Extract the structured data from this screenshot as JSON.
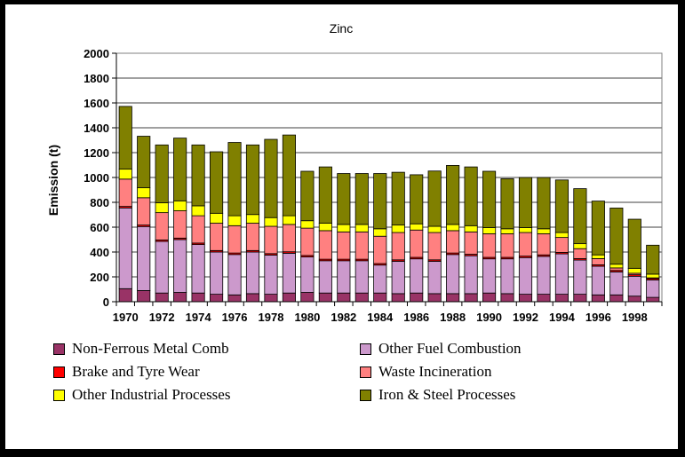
{
  "chart_data": {
    "type": "bar",
    "stacked": true,
    "title": "Zinc",
    "ylabel": "Emission (t)",
    "xlabel": "",
    "ylim": [
      0,
      2000
    ],
    "yticks": [
      0,
      200,
      400,
      600,
      800,
      1000,
      1200,
      1400,
      1600,
      1800,
      2000
    ],
    "grid": true,
    "legend_position": "bottom",
    "categories": [
      "1970",
      "1971",
      "1972",
      "1973",
      "1974",
      "1975",
      "1976",
      "1977",
      "1978",
      "1979",
      "1980",
      "1981",
      "1982",
      "1983",
      "1984",
      "1985",
      "1986",
      "1987",
      "1988",
      "1989",
      "1990",
      "1991",
      "1992",
      "1993",
      "1994",
      "1995",
      "1996",
      "1997",
      "1998",
      "1999"
    ],
    "x_tick_labels": [
      "1970",
      "1972",
      "1974",
      "1976",
      "1978",
      "1980",
      "1982",
      "1984",
      "1986",
      "1988",
      "1990",
      "1992",
      "1994",
      "1996",
      "1998"
    ],
    "series": [
      {
        "name": "Non-Ferrous Metal Comb",
        "color": "#993366",
        "values": [
          105,
          90,
          70,
          75,
          70,
          60,
          55,
          65,
          60,
          70,
          75,
          70,
          70,
          70,
          70,
          65,
          70,
          65,
          65,
          65,
          70,
          65,
          60,
          60,
          60,
          60,
          55,
          55,
          45,
          35
        ]
      },
      {
        "name": "Other Fuel Combustion",
        "color": "#CC99CC",
        "values": [
          650,
          515,
          415,
          425,
          390,
          340,
          325,
          335,
          315,
          320,
          285,
          260,
          260,
          260,
          225,
          260,
          275,
          260,
          315,
          305,
          275,
          280,
          295,
          305,
          325,
          275,
          230,
          185,
          160,
          140
        ]
      },
      {
        "name": "Brake and Tyre Wear",
        "color": "#FF0000",
        "values": [
          12,
          12,
          12,
          12,
          12,
          12,
          12,
          12,
          12,
          12,
          12,
          12,
          12,
          12,
          12,
          12,
          12,
          12,
          12,
          12,
          12,
          12,
          12,
          12,
          12,
          12,
          12,
          12,
          12,
          12
        ]
      },
      {
        "name": "Waste Incineration",
        "color": "#FF8080",
        "values": [
          220,
          220,
          220,
          220,
          220,
          220,
          220,
          220,
          220,
          220,
          220,
          230,
          220,
          220,
          220,
          220,
          220,
          220,
          180,
          180,
          190,
          190,
          190,
          170,
          120,
          80,
          50,
          20,
          12,
          5
        ]
      },
      {
        "name": "Other Industrial Processes",
        "color": "#FFFF00",
        "values": [
          80,
          80,
          80,
          80,
          80,
          80,
          80,
          70,
          70,
          70,
          60,
          60,
          60,
          60,
          60,
          60,
          50,
          50,
          50,
          50,
          50,
          40,
          40,
          40,
          40,
          40,
          30,
          30,
          40,
          30
        ]
      },
      {
        "name": "Iron & Steel Processes",
        "color": "#808000",
        "values": [
          505,
          415,
          465,
          505,
          490,
          495,
          590,
          560,
          630,
          650,
          398,
          453,
          410,
          410,
          445,
          425,
          395,
          445,
          475,
          473,
          453,
          403,
          403,
          413,
          423,
          443,
          433,
          452,
          395,
          233
        ]
      }
    ],
    "totals_approx": [
      1572,
      1332,
      1262,
      1317,
      1262,
      1207,
      1282,
      1262,
      1307,
      1342,
      1050,
      1085,
      1032,
      1032,
      1032,
      1042,
      1022,
      1052,
      1097,
      1085,
      1050,
      990,
      1000,
      1000,
      980,
      910,
      810,
      754,
      664,
      455
    ]
  },
  "colors": {
    "frame": "#000000",
    "plot_bg": "#FFFFFF",
    "bar_outline": "#000000"
  }
}
